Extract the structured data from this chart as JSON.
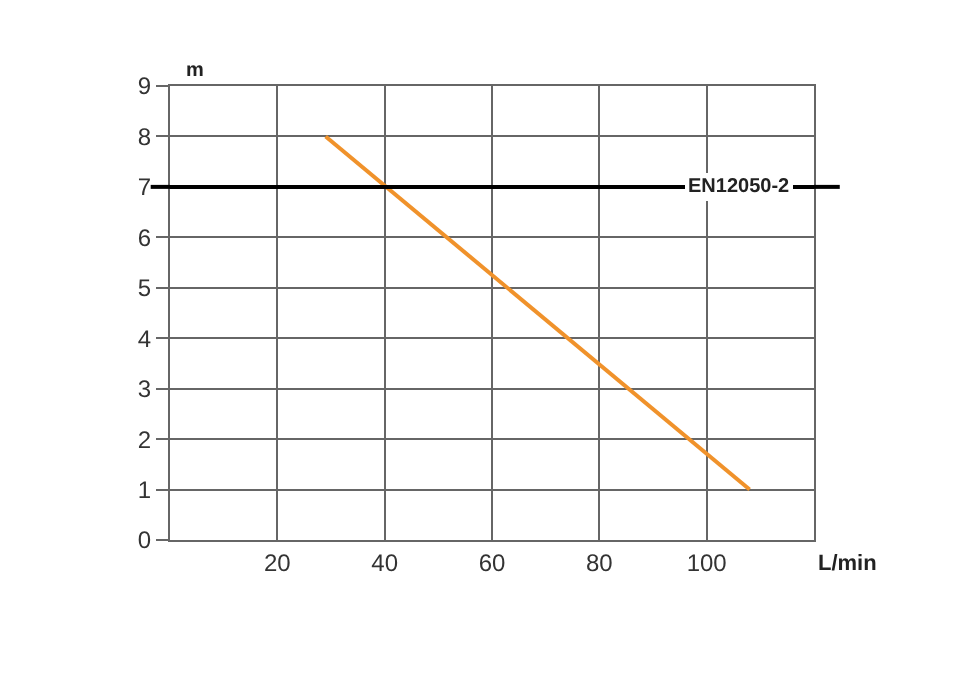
{
  "chart_data": {
    "type": "line",
    "xlabel": "L/min",
    "ylabel": "m",
    "series": [
      {
        "color": "#f0922b",
        "x": [
          29,
          108
        ],
        "values": [
          8,
          1
        ]
      }
    ],
    "xlim": [
      0,
      120
    ],
    "xticks": [
      20,
      40,
      60,
      80,
      100
    ],
    "ylim": [
      0,
      9
    ],
    "yticks": [
      0,
      1,
      2,
      3,
      4,
      5,
      6,
      7,
      8,
      9
    ],
    "ref_lines": [
      {
        "axis": "y",
        "value": 7,
        "label": "EN12050-2",
        "color": "#000000"
      }
    ],
    "grid": true,
    "marker": "none",
    "line_style": "solid"
  }
}
